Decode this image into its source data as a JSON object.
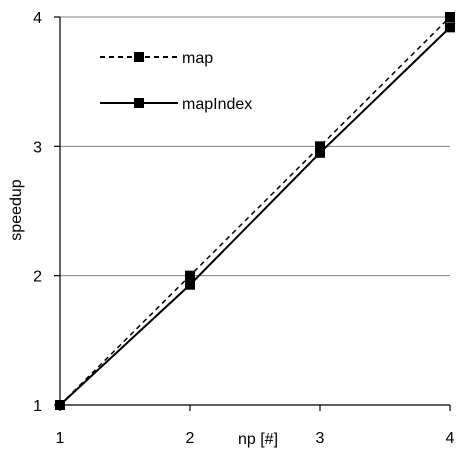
{
  "chart_data": {
    "type": "line",
    "xlabel": "np [#]",
    "ylabel": "speedup",
    "x": [
      1,
      2,
      3,
      4
    ],
    "xlim": [
      1,
      4
    ],
    "ylim": [
      1,
      4
    ],
    "xticks": [
      "1",
      "2",
      "3",
      "4"
    ],
    "yticks": [
      "1",
      "2",
      "3",
      "4"
    ],
    "grid": "horizontal",
    "legend_position": "top-left",
    "series": [
      {
        "name": "map",
        "values": [
          1.0,
          2.0,
          3.0,
          4.0
        ],
        "line_style": "dashed",
        "marker": "square",
        "color": "#000000"
      },
      {
        "name": "mapIndex",
        "values": [
          1.0,
          1.93,
          2.95,
          3.92
        ],
        "line_style": "solid",
        "marker": "square",
        "color": "#000000"
      }
    ]
  }
}
